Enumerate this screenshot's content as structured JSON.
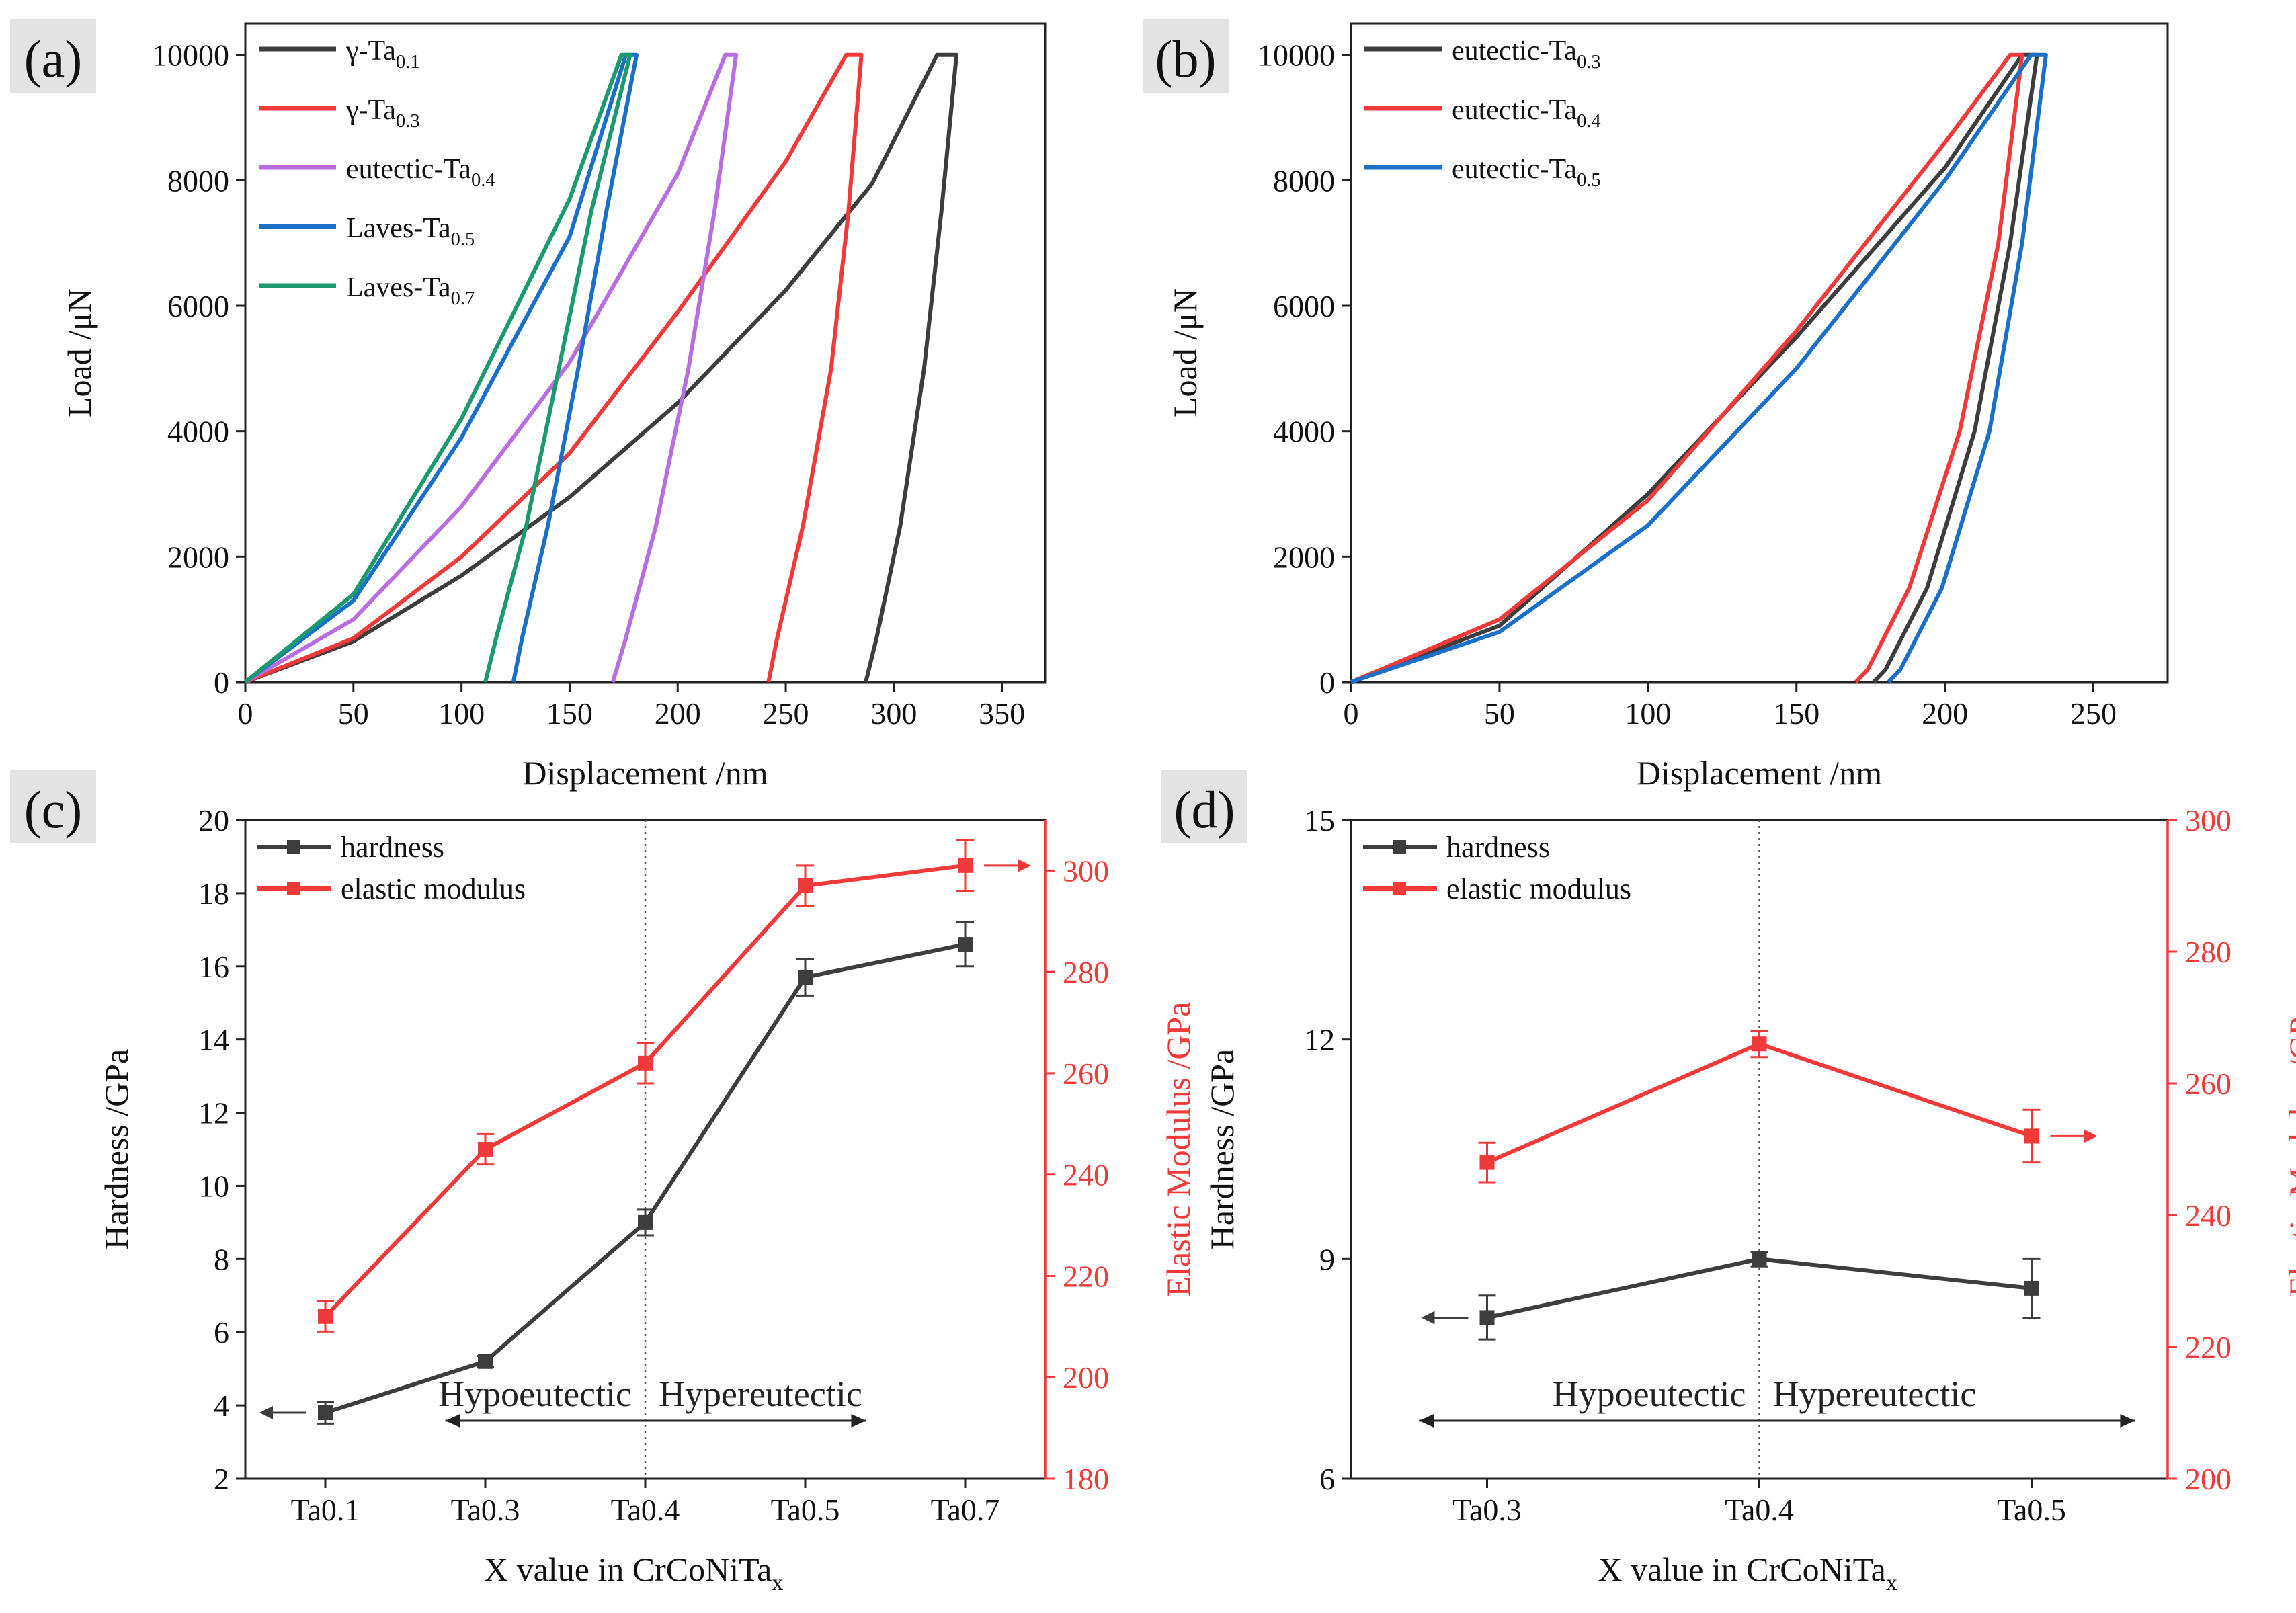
{
  "panels": [
    {
      "id": "a",
      "label": "(a)",
      "chart_data": {
        "type": "line",
        "title": "",
        "xlabel": "Displacement /nm",
        "ylabel": "Load /μN",
        "xlim": [
          0,
          370
        ],
        "ylim": [
          0,
          10500
        ],
        "xticks": [
          0,
          50,
          100,
          150,
          200,
          250,
          300,
          350
        ],
        "yticks": [
          0,
          2000,
          4000,
          6000,
          8000,
          10000
        ],
        "legend_position": "top-left",
        "series": [
          {
            "name": "γ-Ta",
            "sub": "0.1",
            "color": "#3d3d3d",
            "loading": [
              [
                0,
                0
              ],
              [
                50,
                650
              ],
              [
                100,
                1700
              ],
              [
                150,
                2950
              ],
              [
                200,
                4450
              ],
              [
                250,
                6250
              ],
              [
                290,
                7950
              ],
              [
                320,
                10000
              ]
            ],
            "hold": [
              [
                320,
                10000
              ],
              [
                329,
                10000
              ]
            ],
            "unloading": [
              [
                329,
                10000
              ],
              [
                322,
                7500
              ],
              [
                314,
                5000
              ],
              [
                303,
                2500
              ],
              [
                292,
                700
              ],
              [
                287,
                0
              ]
            ]
          },
          {
            "name": "γ-Ta",
            "sub": "0.3",
            "color": "#f03a3a",
            "loading": [
              [
                0,
                0
              ],
              [
                50,
                700
              ],
              [
                100,
                2000
              ],
              [
                150,
                3650
              ],
              [
                200,
                5900
              ],
              [
                250,
                8300
              ],
              [
                278,
                10000
              ]
            ],
            "hold": [
              [
                278,
                10000
              ],
              [
                285,
                10000
              ]
            ],
            "unloading": [
              [
                285,
                10000
              ],
              [
                279,
                7500
              ],
              [
                271,
                5000
              ],
              [
                258,
                2500
              ],
              [
                246,
                700
              ],
              [
                242,
                0
              ]
            ]
          },
          {
            "name": "eutectic-Ta",
            "sub": "0.4",
            "color": "#b86ee0",
            "loading": [
              [
                0,
                0
              ],
              [
                50,
                1000
              ],
              [
                100,
                2800
              ],
              [
                150,
                5100
              ],
              [
                200,
                8100
              ],
              [
                222,
                10000
              ]
            ],
            "hold": [
              [
                222,
                10000
              ],
              [
                227,
                10000
              ]
            ],
            "unloading": [
              [
                227,
                10000
              ],
              [
                217,
                7500
              ],
              [
                205,
                5000
              ],
              [
                190,
                2500
              ],
              [
                176,
                700
              ],
              [
                170,
                0
              ]
            ]
          },
          {
            "name": "Laves-Ta",
            "sub": "0.5",
            "color": "#1a70c8",
            "loading": [
              [
                0,
                0
              ],
              [
                50,
                1300
              ],
              [
                100,
                3900
              ],
              [
                150,
                7100
              ],
              [
                176,
                10000
              ]
            ],
            "hold": [
              [
                176,
                10000
              ],
              [
                181,
                10000
              ]
            ],
            "unloading": [
              [
                181,
                10000
              ],
              [
                167,
                7500
              ],
              [
                154,
                5000
              ],
              [
                140,
                2500
              ],
              [
                128,
                700
              ],
              [
                124,
                0
              ]
            ]
          },
          {
            "name": "Laves-Ta",
            "sub": "0.7",
            "color": "#1a9a6e",
            "loading": [
              [
                0,
                0
              ],
              [
                50,
                1400
              ],
              [
                100,
                4200
              ],
              [
                150,
                7700
              ],
              [
                174,
                10000
              ]
            ],
            "hold": [
              [
                174,
                10000
              ],
              [
                178,
                10000
              ]
            ],
            "unloading": [
              [
                178,
                10000
              ],
              [
                160,
                7500
              ],
              [
                145,
                5000
              ],
              [
                130,
                2500
              ],
              [
                116,
                700
              ],
              [
                111,
                0
              ]
            ]
          }
        ]
      }
    },
    {
      "id": "b",
      "label": "(b)",
      "chart_data": {
        "type": "line",
        "title": "",
        "xlabel": "Displacement /nm",
        "ylabel": "Load /μN",
        "xlim": [
          0,
          275
        ],
        "ylim": [
          0,
          10500
        ],
        "xticks": [
          0,
          50,
          100,
          150,
          200,
          250
        ],
        "yticks": [
          0,
          2000,
          4000,
          6000,
          8000,
          10000
        ],
        "legend_position": "top-left",
        "series": [
          {
            "name": "eutectic-Ta",
            "sub": "0.3",
            "color": "#3d3d3d",
            "loading": [
              [
                0,
                0
              ],
              [
                50,
                900
              ],
              [
                100,
                3000
              ],
              [
                150,
                5500
              ],
              [
                200,
                8200
              ],
              [
                226,
                10000
              ]
            ],
            "hold": [
              [
                226,
                10000
              ],
              [
                231,
                10000
              ]
            ],
            "unloading": [
              [
                231,
                10000
              ],
              [
                222,
                7000
              ],
              [
                210,
                4000
              ],
              [
                194,
                1500
              ],
              [
                180,
                200
              ],
              [
                176,
                0
              ]
            ]
          },
          {
            "name": "eutectic-Ta",
            "sub": "0.4",
            "color": "#f03a3a",
            "loading": [
              [
                0,
                0
              ],
              [
                50,
                1000
              ],
              [
                100,
                2900
              ],
              [
                150,
                5600
              ],
              [
                200,
                8600
              ],
              [
                222,
                10000
              ]
            ],
            "hold": [
              [
                222,
                10000
              ],
              [
                226,
                10000
              ]
            ],
            "unloading": [
              [
                226,
                10000
              ],
              [
                218,
                7000
              ],
              [
                205,
                4000
              ],
              [
                188,
                1500
              ],
              [
                174,
                200
              ],
              [
                170,
                0
              ]
            ]
          },
          {
            "name": "eutectic-Ta",
            "sub": "0.5",
            "color": "#1a70c8",
            "loading": [
              [
                0,
                0
              ],
              [
                50,
                800
              ],
              [
                100,
                2500
              ],
              [
                150,
                5000
              ],
              [
                200,
                8000
              ],
              [
                229,
                10000
              ]
            ],
            "hold": [
              [
                229,
                10000
              ],
              [
                234,
                10000
              ]
            ],
            "unloading": [
              [
                234,
                10000
              ],
              [
                226,
                7000
              ],
              [
                215,
                4000
              ],
              [
                199,
                1500
              ],
              [
                185,
                200
              ],
              [
                181,
                0
              ]
            ]
          }
        ]
      }
    },
    {
      "id": "c",
      "label": "(c)",
      "chart_data": {
        "type": "line",
        "title": "",
        "xlabel": "X value in CrCoNiTa",
        "xlabel_sub": "x",
        "ylabel": "Hardness /GPa",
        "y2label": "Elastic Modulus /GPa",
        "categories": [
          "Ta0.1",
          "Ta0.3",
          "Ta0.4",
          "Ta0.5",
          "Ta0.7"
        ],
        "ylim": [
          2,
          20
        ],
        "y2lim": [
          180,
          310
        ],
        "yticks": [
          2,
          4,
          6,
          8,
          10,
          12,
          14,
          16,
          18,
          20
        ],
        "y2ticks": [
          180,
          200,
          220,
          240,
          260,
          280,
          300
        ],
        "legend_position": "top-left",
        "divider_at": "Ta0.4",
        "annotation_left": "Hypoeutectic",
        "annotation_right": "Hypereutectic",
        "series": [
          {
            "name": "hardness",
            "axis": "left",
            "color": "#3d3d3d",
            "values": [
              3.8,
              5.2,
              9.0,
              15.7,
              16.6
            ],
            "errors": [
              0.3,
              0.15,
              0.35,
              0.5,
              0.6
            ]
          },
          {
            "name": "elastic modulus",
            "axis": "right",
            "color": "#f03a3a",
            "values": [
              212,
              245,
              262,
              297,
              301
            ],
            "errors": [
              3,
              3,
              4,
              4,
              5
            ]
          }
        ]
      }
    },
    {
      "id": "d",
      "label": "(d)",
      "chart_data": {
        "type": "line",
        "title": "",
        "xlabel": "X value in CrCoNiTa",
        "xlabel_sub": "x",
        "ylabel": "Hardness /GPa",
        "y2label": "Elastic Modulus /GPa",
        "categories": [
          "Ta0.3",
          "Ta0.4",
          "Ta0.5"
        ],
        "ylim": [
          6,
          15
        ],
        "y2lim": [
          200,
          300
        ],
        "yticks": [
          6,
          9,
          12,
          15
        ],
        "y2ticks": [
          200,
          220,
          240,
          260,
          280,
          300
        ],
        "legend_position": "top-left",
        "divider_at": "Ta0.4",
        "annotation_left": "Hypoeutectic",
        "annotation_right": "Hypereutectic",
        "series": [
          {
            "name": "hardness",
            "axis": "left",
            "color": "#3d3d3d",
            "values": [
              8.2,
              9.0,
              8.6
            ],
            "errors": [
              0.3,
              0.1,
              0.4
            ]
          },
          {
            "name": "elastic modulus",
            "axis": "right",
            "color": "#f03a3a",
            "values": [
              248,
              266,
              252
            ],
            "errors": [
              3,
              2,
              4
            ]
          }
        ]
      }
    }
  ]
}
